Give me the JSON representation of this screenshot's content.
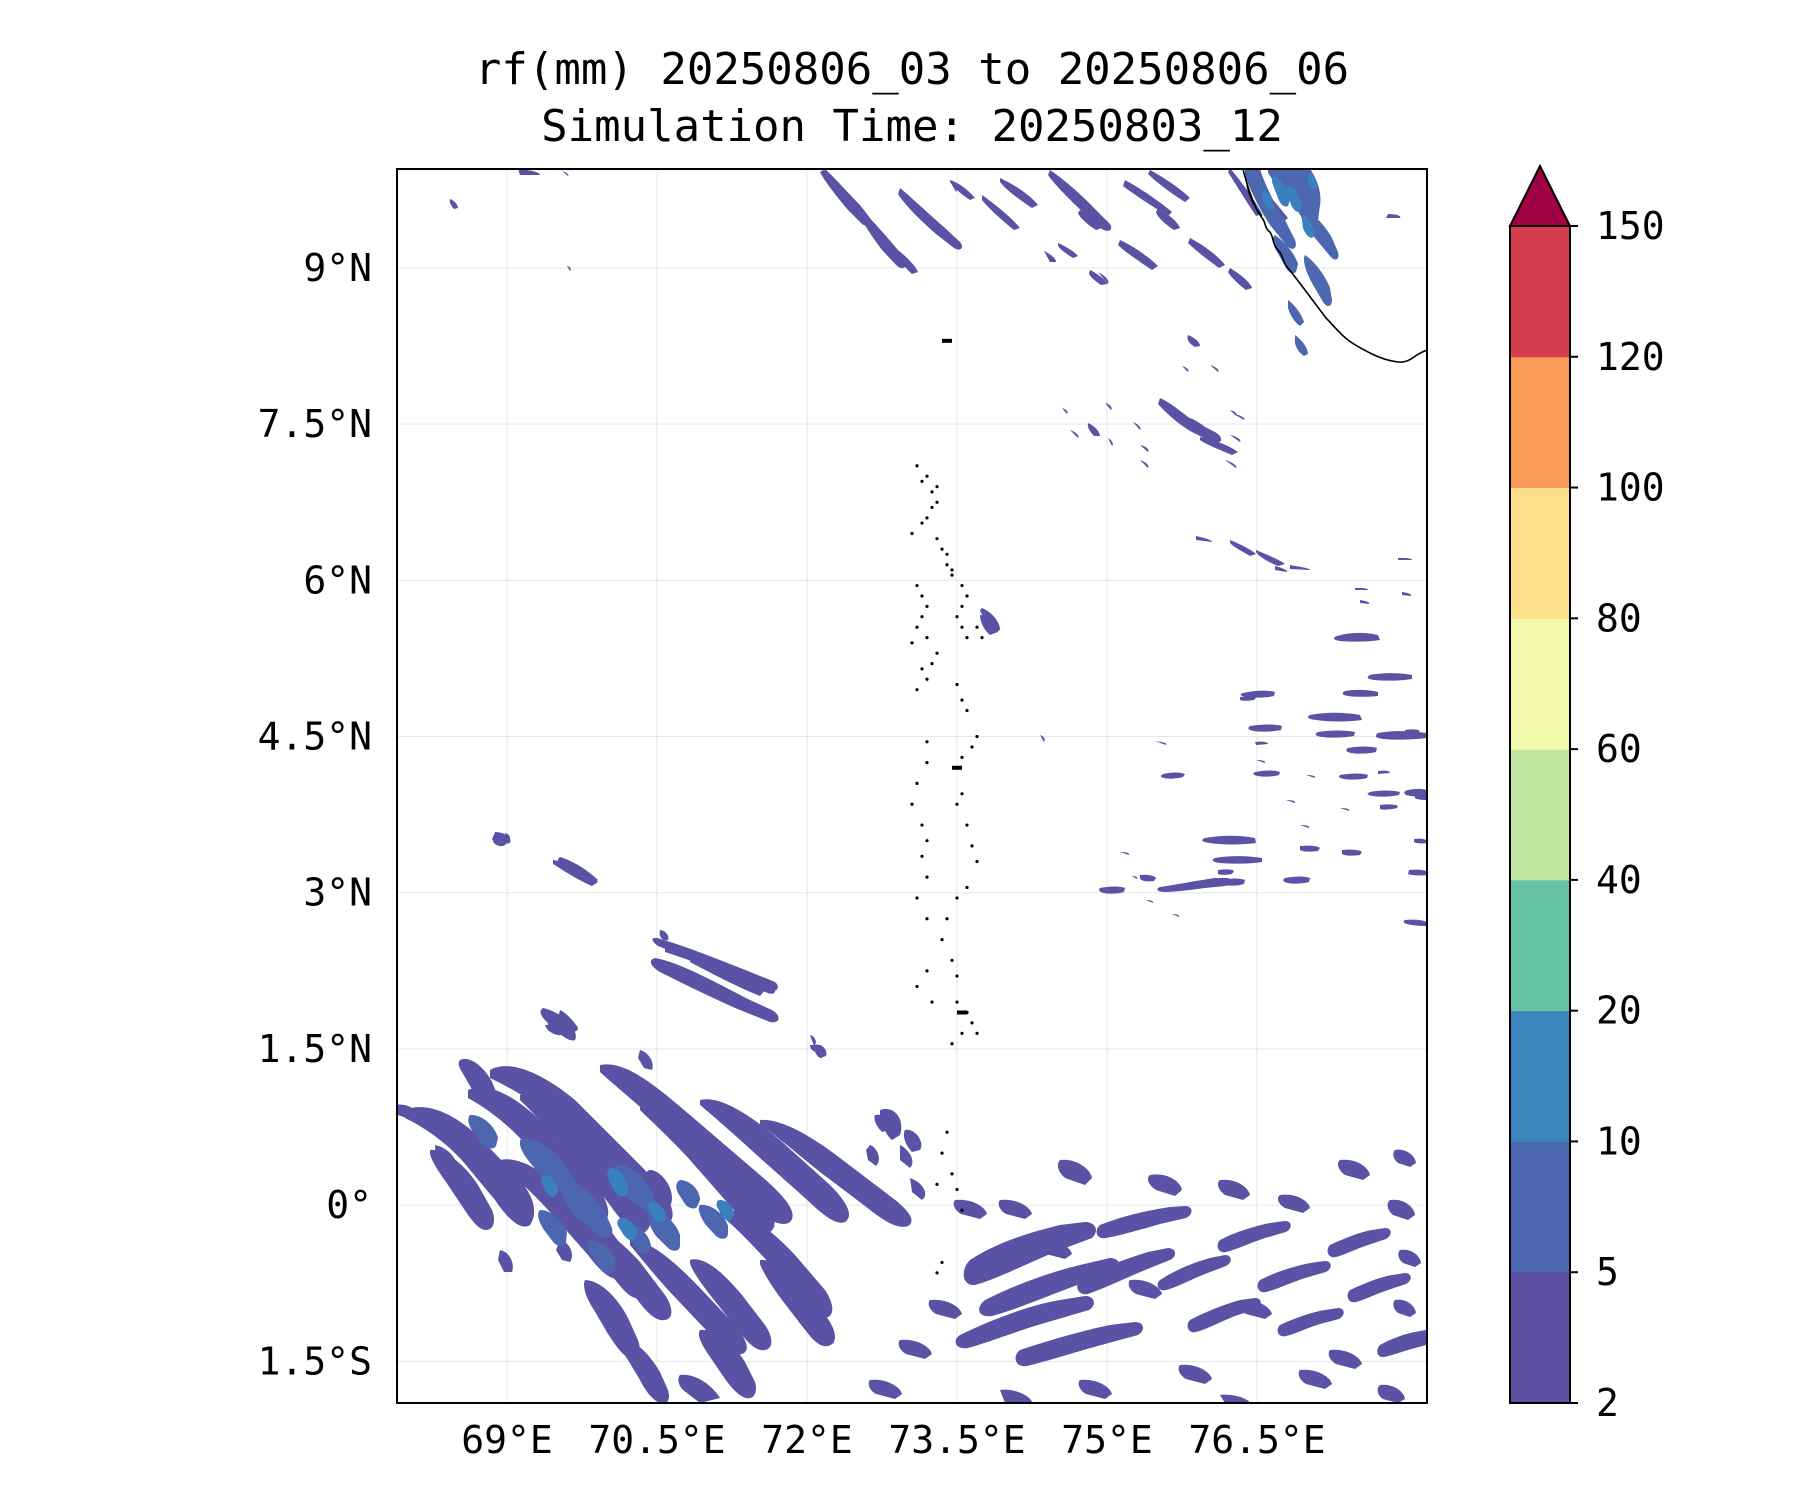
{
  "title": {
    "line1": "rf(mm) 20250806_03 to 20250806_06",
    "line2": "Simulation Time: 20250803_12"
  },
  "map": {
    "lon_range": [
      67.9,
      78.2
    ],
    "lat_range": [
      -1.9,
      9.95
    ],
    "lon_ticks": [
      69,
      70.5,
      72,
      73.5,
      75,
      76.5
    ],
    "lon_tick_labels": [
      "69°E",
      "70.5°E",
      "72°E",
      "73.5°E",
      "75°E",
      "76.5°E"
    ],
    "lat_ticks": [
      9,
      7.5,
      6,
      4.5,
      3,
      1.5,
      0,
      -1.5
    ],
    "lat_tick_labels": [
      "9°N",
      "7.5°N",
      "6°N",
      "4.5°N",
      "3°N",
      "1.5°N",
      "0°",
      "1.5°S"
    ],
    "gridlines": true
  },
  "colorbar": {
    "levels": [
      2,
      5,
      10,
      20,
      40,
      60,
      80,
      100,
      120,
      150
    ],
    "tick_labels": [
      "2",
      "5",
      "10",
      "20",
      "40",
      "60",
      "80",
      "100",
      "120",
      "150"
    ],
    "colors": [
      "#5e4fa2",
      "#4b65ae",
      "#3a85bb",
      "#66c2a5",
      "#bfe5a0",
      "#f2f9ad",
      "#fcde8b",
      "#fa9b58",
      "#d53e4f"
    ],
    "extend_color": "#9e0142"
  },
  "rain_colors": {
    "light": "#5a52a4",
    "medium": "#4c66b0",
    "heavy": "#3a7fbf"
  }
}
